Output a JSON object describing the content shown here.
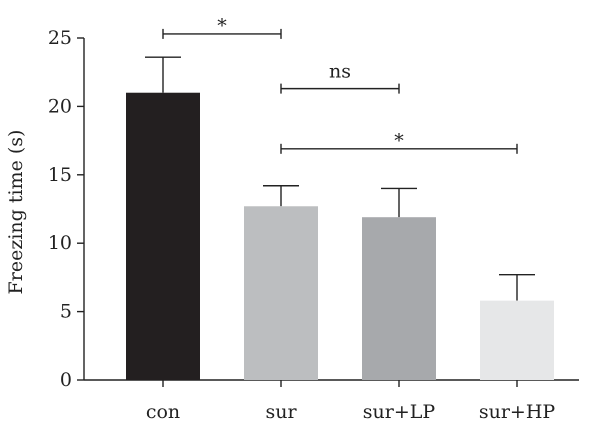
{
  "chart_data": {
    "type": "bar",
    "ylabel": "Freezing time (s)",
    "ylim": [
      0,
      25
    ],
    "yticks": [
      0,
      5,
      10,
      15,
      20,
      25
    ],
    "categories": [
      "con",
      "sur",
      "sur+LP",
      "sur+HP"
    ],
    "values": [
      21.0,
      12.7,
      11.9,
      5.8
    ],
    "errors": [
      2.6,
      1.5,
      2.1,
      1.9
    ],
    "bar_colors": [
      "#231f20",
      "#bcbec0",
      "#a7a9ac",
      "#e6e7e8"
    ],
    "significance": [
      {
        "from": 0,
        "to": 1,
        "label": "*",
        "y": 25.3
      },
      {
        "from": 1,
        "to": 2,
        "label": "ns",
        "y": 21.3
      },
      {
        "from": 1,
        "to": 3,
        "label": "*",
        "y": 16.9
      }
    ],
    "grid": false,
    "legend": "none"
  }
}
